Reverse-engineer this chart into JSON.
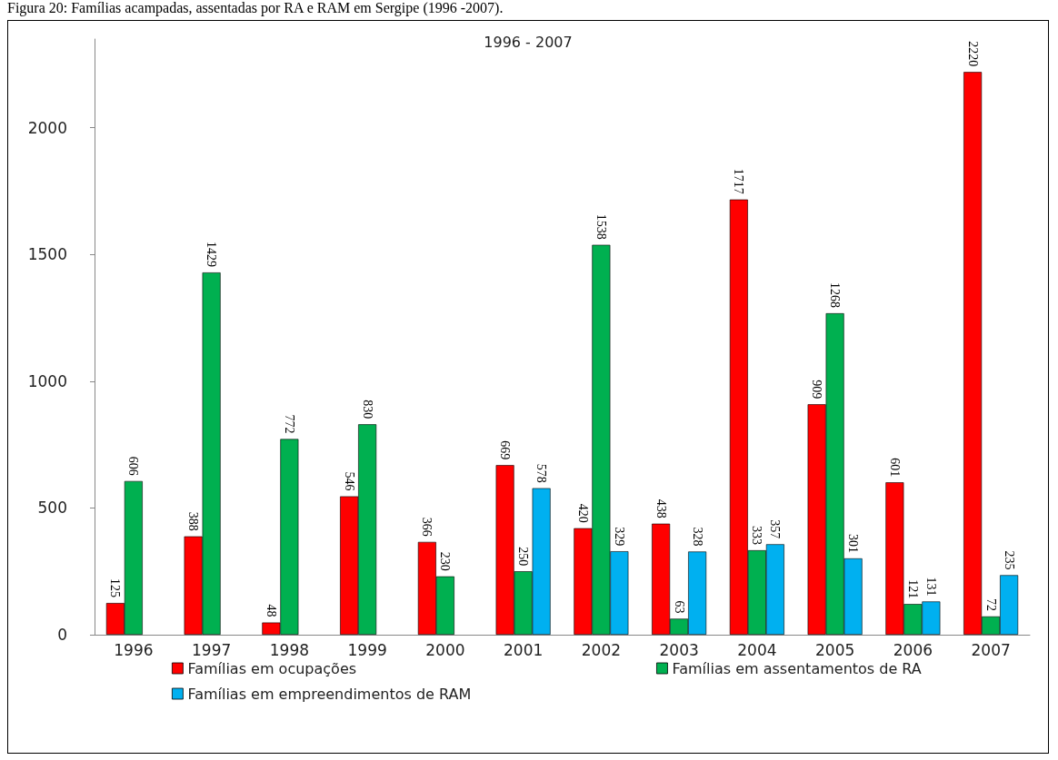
{
  "chart_data": {
    "type": "bar",
    "title": "1996 - 2007",
    "annotations": [
      "Figura 20: Famílias acampadas, assentadas por RA e RAM em Sergipe (1996 -2007)."
    ],
    "categories": [
      "1996",
      "1997",
      "1998",
      "1999",
      "2000",
      "2001",
      "2002",
      "2003",
      "2004",
      "2005",
      "2006",
      "2007"
    ],
    "series": [
      {
        "name": "Famílias em ocupações",
        "color": "#ff0000",
        "values": [
          125,
          388,
          48,
          546,
          366,
          669,
          420,
          438,
          1717,
          909,
          601,
          2220
        ]
      },
      {
        "name": "Famílias em assentamentos de RA",
        "color": "#00b050",
        "values": [
          606,
          1429,
          772,
          830,
          230,
          250,
          1538,
          63,
          333,
          1268,
          121,
          72
        ]
      },
      {
        "name": "Famílias em empreendimentos de RAM",
        "color": "#00b0f0",
        "values": [
          null,
          null,
          null,
          null,
          null,
          578,
          329,
          328,
          357,
          301,
          131,
          235
        ]
      }
    ],
    "ylim": [
      0,
      2350
    ],
    "yticks": [
      0,
      500,
      1000,
      1500,
      2000
    ],
    "grid": false,
    "legend": "bottom",
    "data_labels": true
  }
}
